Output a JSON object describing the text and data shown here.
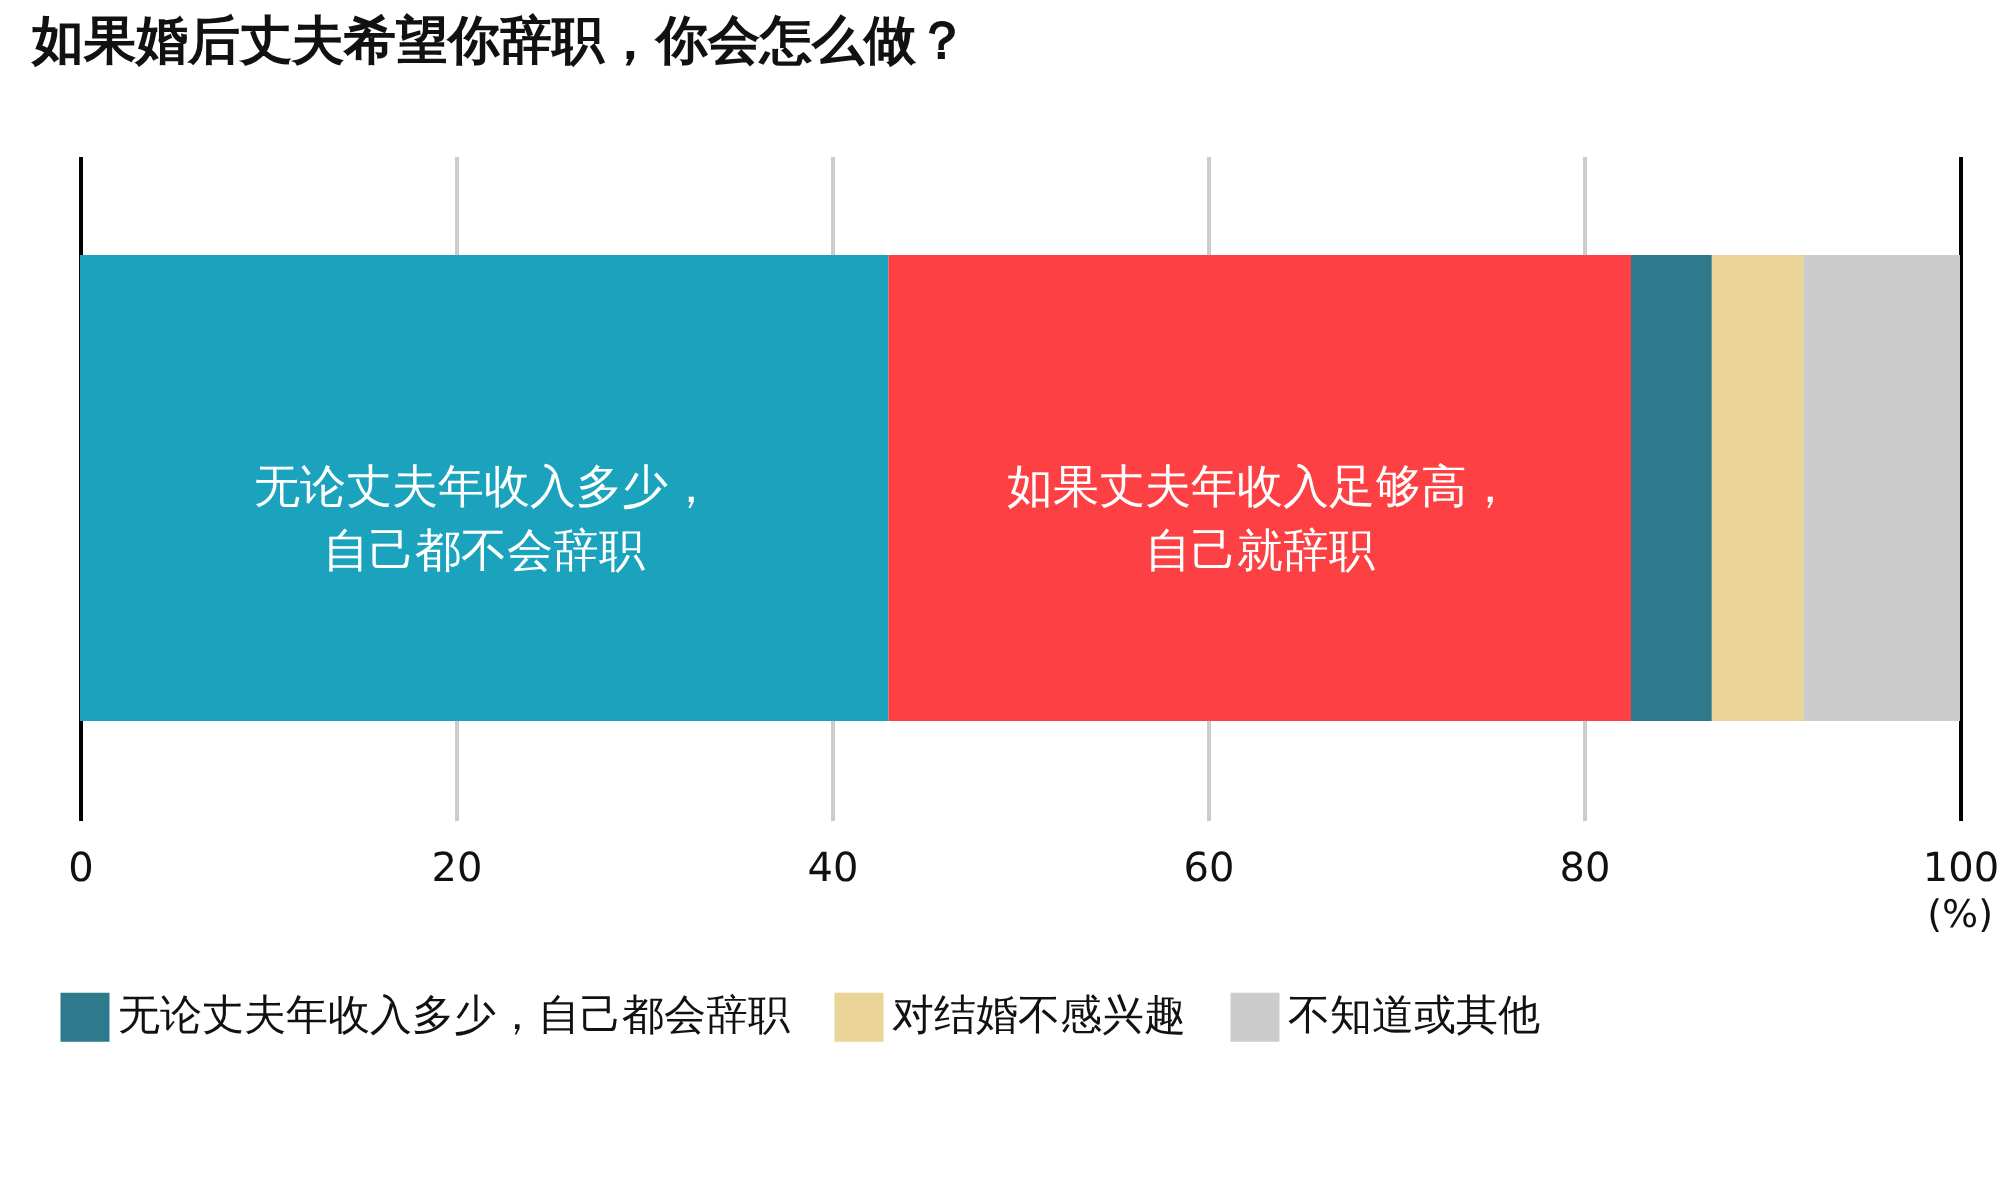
{
  "chart_data": {
    "type": "bar",
    "title": "如果婚后丈夫希望你辞职，你会怎么做？",
    "xlabel": "(%)",
    "orientation": "horizontal",
    "stacked": true,
    "categories": [
      null
    ],
    "series": [
      {
        "name": "无论丈夫年收入多少，自己都不会辞职",
        "color": "#1ba3be",
        "values": [
          43.0
        ]
      },
      {
        "name": "如果丈夫年收入足够高，自己就辞职",
        "color": "#fd4043",
        "values": [
          39.5
        ]
      },
      {
        "name": "无论丈夫年收入多少，自己都会辞职",
        "color": "#2e7a8c",
        "values": [
          4.3
        ]
      },
      {
        "name": "对结婚不感兴趣",
        "color": "#ead498",
        "values": [
          4.9
        ]
      },
      {
        "name": "不知道或其他",
        "color": "#cccccc",
        "values": [
          8.3
        ]
      }
    ],
    "xlim": [
      0,
      100
    ],
    "xticks": [
      0,
      20,
      40,
      60,
      80,
      100
    ],
    "grid": "x",
    "legend": "bottom left"
  }
}
